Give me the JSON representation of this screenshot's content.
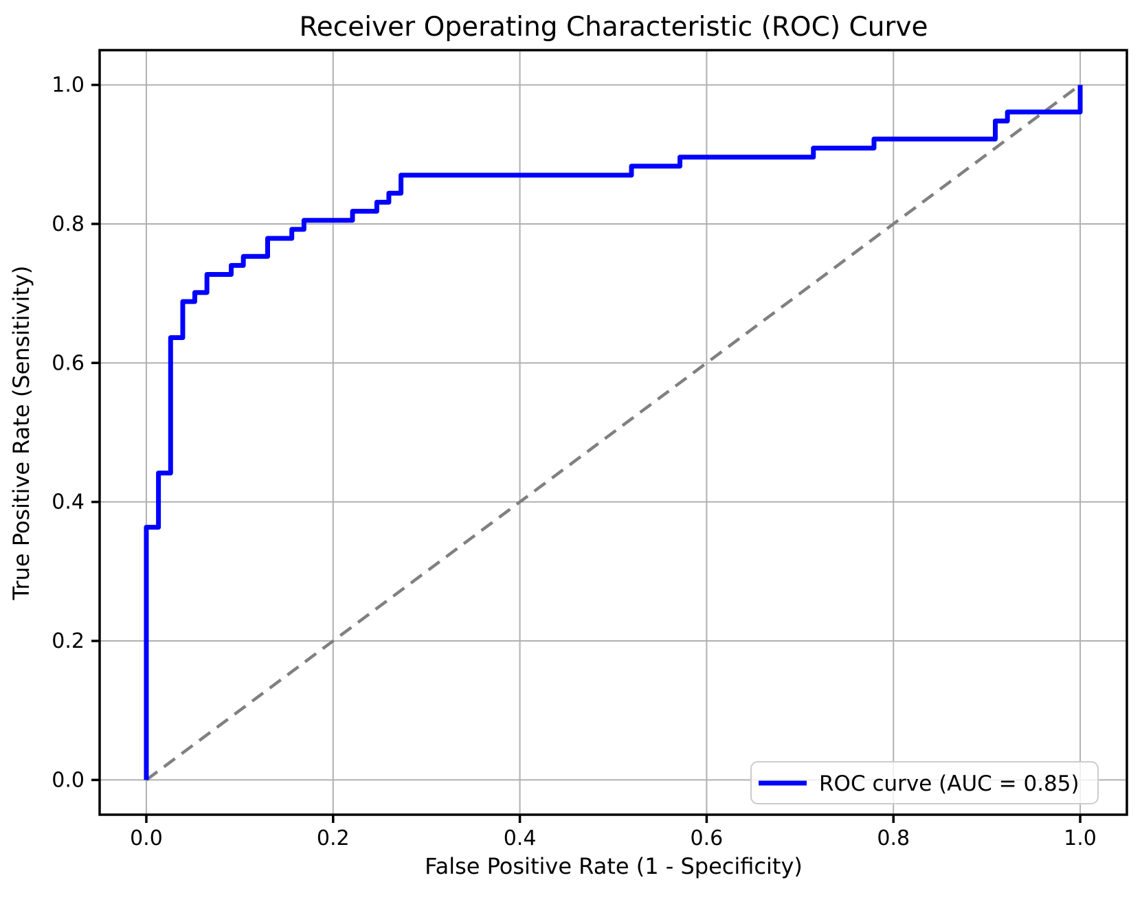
{
  "chart_data": {
    "type": "line",
    "subtype": "roc-step-curve",
    "title": "Receiver Operating Characteristic (ROC) Curve",
    "xlabel": "False Positive Rate (1 - Specificity)",
    "ylabel": "True Positive Rate (Sensitivity)",
    "xlim": [
      -0.05,
      1.05
    ],
    "ylim": [
      -0.05,
      1.05
    ],
    "xticks": [
      0.0,
      0.2,
      0.4,
      0.6,
      0.8,
      1.0
    ],
    "yticks": [
      0.0,
      0.2,
      0.4,
      0.6,
      0.8,
      1.0
    ],
    "xtick_labels": [
      "0.0",
      "0.2",
      "0.4",
      "0.6",
      "0.8",
      "1.0"
    ],
    "ytick_labels": [
      "0.0",
      "0.2",
      "0.4",
      "0.6",
      "0.8",
      "1.0"
    ],
    "grid": true,
    "auc": 0.85,
    "legend": {
      "label": "ROC curve (AUC = 0.85)",
      "position": "lower right"
    },
    "series": [
      {
        "name": "ROC curve",
        "style": "solid-step",
        "color": "#0000ff",
        "linewidth": 7,
        "points": [
          [
            0.0,
            0.0
          ],
          [
            0.0,
            0.3636
          ],
          [
            0.013,
            0.3636
          ],
          [
            0.013,
            0.4416
          ],
          [
            0.026,
            0.4416
          ],
          [
            0.026,
            0.6364
          ],
          [
            0.039,
            0.6364
          ],
          [
            0.039,
            0.6883
          ],
          [
            0.0519,
            0.6883
          ],
          [
            0.0519,
            0.7013
          ],
          [
            0.0649,
            0.7013
          ],
          [
            0.0649,
            0.7273
          ],
          [
            0.0909,
            0.7273
          ],
          [
            0.0909,
            0.7403
          ],
          [
            0.1039,
            0.7403
          ],
          [
            0.1039,
            0.7532
          ],
          [
            0.1299,
            0.7532
          ],
          [
            0.1299,
            0.7792
          ],
          [
            0.1558,
            0.7792
          ],
          [
            0.1558,
            0.7922
          ],
          [
            0.1688,
            0.7922
          ],
          [
            0.1688,
            0.8052
          ],
          [
            0.2208,
            0.8052
          ],
          [
            0.2208,
            0.8182
          ],
          [
            0.2468,
            0.8182
          ],
          [
            0.2468,
            0.8312
          ],
          [
            0.2597,
            0.8312
          ],
          [
            0.2597,
            0.8442
          ],
          [
            0.2727,
            0.8442
          ],
          [
            0.2727,
            0.8701
          ],
          [
            0.5195,
            0.8701
          ],
          [
            0.5195,
            0.8831
          ],
          [
            0.5714,
            0.8831
          ],
          [
            0.5714,
            0.8961
          ],
          [
            0.7143,
            0.8961
          ],
          [
            0.7143,
            0.9091
          ],
          [
            0.7792,
            0.9091
          ],
          [
            0.7792,
            0.9221
          ],
          [
            0.9091,
            0.9221
          ],
          [
            0.9091,
            0.9481
          ],
          [
            0.9221,
            0.9481
          ],
          [
            0.9221,
            0.961
          ],
          [
            1.0,
            0.961
          ],
          [
            1.0,
            1.0
          ]
        ]
      },
      {
        "name": "chance diagonal",
        "style": "dashed",
        "color": "#808080",
        "linewidth": 4.5,
        "points": [
          [
            0.0,
            0.0
          ],
          [
            1.0,
            1.0
          ]
        ]
      }
    ],
    "colors": {
      "curve": "#0000ff",
      "diagonal": "#808080",
      "grid": "#b0b0b0",
      "axes": "#000000",
      "legend_border": "#cccccc",
      "background": "#ffffff"
    }
  }
}
